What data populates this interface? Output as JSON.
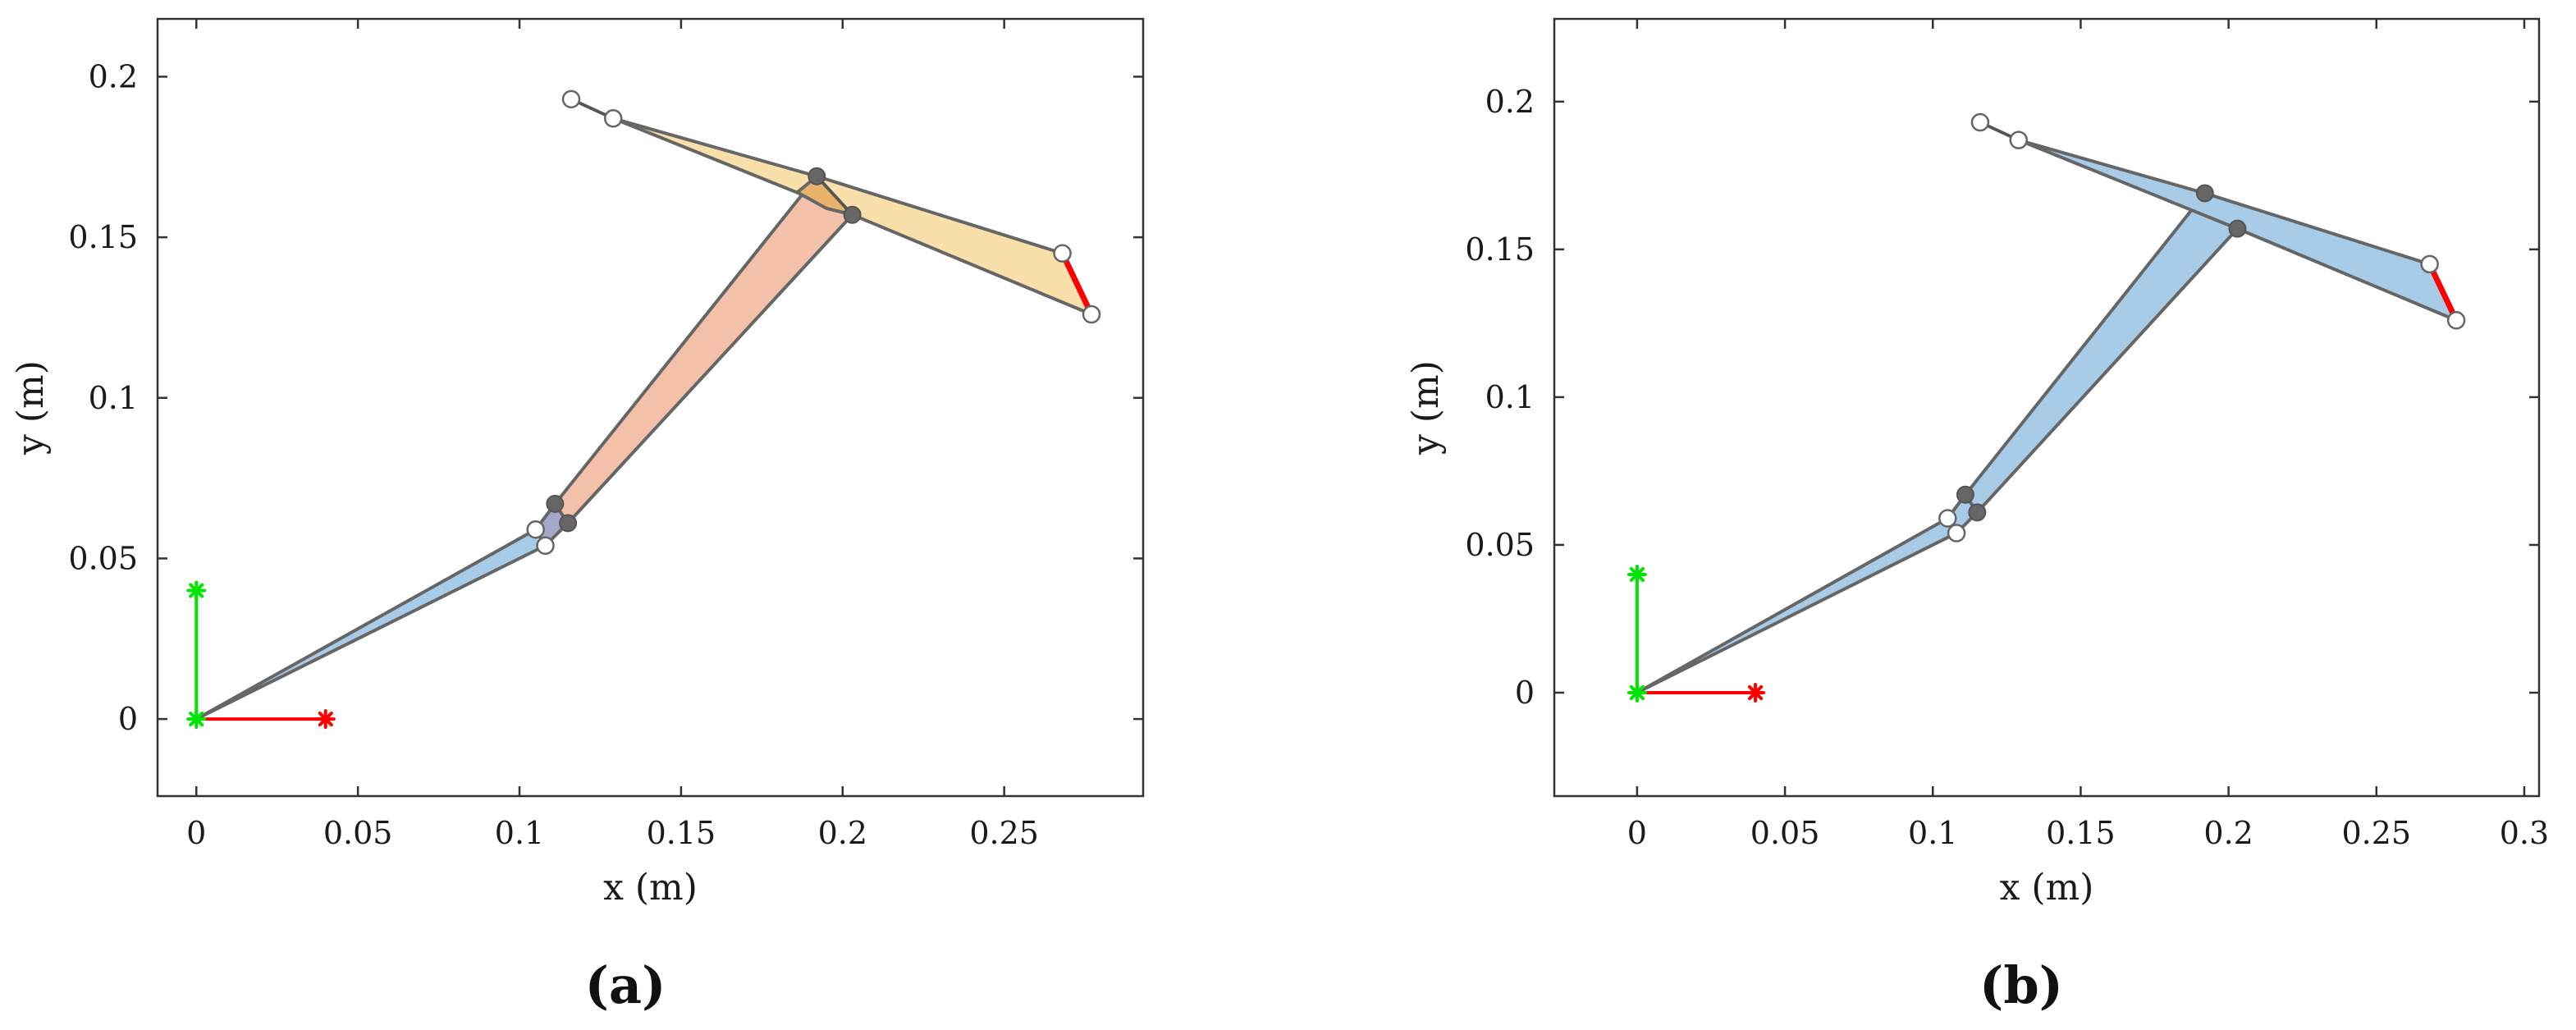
{
  "chart_data": [
    {
      "type": "mechanism-plot",
      "panel_label": "(a)",
      "xlabel": "x (m)",
      "ylabel": "y (m)",
      "xlim": [
        -0.012,
        0.293
      ],
      "ylim": [
        -0.024,
        0.218
      ],
      "xticks": [
        0,
        0.05,
        0.1,
        0.15,
        0.2,
        0.25
      ],
      "xtick_labels": [
        "0",
        "0.05",
        "0.1",
        "0.15",
        "0.2",
        "0.25"
      ],
      "yticks": [
        0,
        0.05,
        0.1,
        0.15,
        0.2
      ],
      "ytick_labels": [
        "0",
        "0.05",
        "0.1",
        "0.15",
        "0.2"
      ],
      "frame_axes": {
        "origin": [
          0,
          0
        ],
        "x_axis": {
          "end": [
            0.04,
            0
          ],
          "color": "#ff0000"
        },
        "y_axis": {
          "end": [
            0,
            0.04
          ],
          "color": "#00e600"
        }
      },
      "links": [
        {
          "fill": "#a8cce8",
          "points": [
            [
              0,
              0
            ],
            [
              0.105,
              0.059
            ],
            [
              0.108,
              0.054
            ]
          ]
        },
        {
          "fill": "#a5a6c8",
          "points": [
            [
              0.105,
              0.059
            ],
            [
              0.111,
              0.067
            ],
            [
              0.115,
              0.061
            ],
            [
              0.108,
              0.054
            ]
          ]
        },
        {
          "fill": "#f3c0aa",
          "points": [
            [
              0.111,
              0.067
            ],
            [
              0.192,
              0.169
            ],
            [
              0.203,
              0.157
            ],
            [
              0.115,
              0.061
            ]
          ]
        },
        {
          "fill": "#f9e0ab",
          "points": [
            [
              0.116,
              0.193
            ],
            [
              0.129,
              0.187
            ],
            [
              0.192,
              0.169
            ],
            [
              0.268,
              0.145
            ],
            [
              0.277,
              0.126
            ],
            [
              0.203,
              0.157
            ],
            [
              0.129,
              0.187
            ]
          ]
        },
        {
          "fill": "#e8b26b",
          "points": [
            [
              0.186,
              0.164
            ],
            [
              0.192,
              0.169
            ],
            [
              0.203,
              0.157
            ],
            [
              0.195,
              0.159
            ]
          ]
        }
      ],
      "lines": [
        {
          "points": [
            [
              0.192,
              0.169
            ],
            [
              0.203,
              0.157
            ]
          ],
          "color": "#555555"
        },
        {
          "points": [
            [
              0.116,
              0.193
            ],
            [
              0.129,
              0.187
            ]
          ],
          "color": "#555555"
        }
      ],
      "end_effector": {
        "points": [
          [
            0.268,
            0.145
          ],
          [
            0.277,
            0.126
          ]
        ],
        "color": "#ff0000"
      },
      "joints_filled": [
        [
          0.111,
          0.067
        ],
        [
          0.115,
          0.061
        ],
        [
          0.192,
          0.169
        ],
        [
          0.203,
          0.157
        ]
      ],
      "joints_open": [
        [
          0.105,
          0.059
        ],
        [
          0.108,
          0.054
        ],
        [
          0.116,
          0.193
        ],
        [
          0.129,
          0.187
        ],
        [
          0.268,
          0.145
        ],
        [
          0.277,
          0.126
        ]
      ]
    },
    {
      "type": "mechanism-plot",
      "panel_label": "(b)",
      "xlabel": "x (m)",
      "ylabel": "y (m)",
      "xlim": [
        -0.028,
        0.305
      ],
      "ylim": [
        -0.035,
        0.228
      ],
      "xticks": [
        0,
        0.05,
        0.1,
        0.15,
        0.2,
        0.25,
        0.3
      ],
      "xtick_labels": [
        "0",
        "0.05",
        "0.1",
        "0.15",
        "0.2",
        "0.25",
        "0.3"
      ],
      "yticks": [
        0,
        0.05,
        0.1,
        0.15,
        0.2
      ],
      "ytick_labels": [
        "0",
        "0.05",
        "0.1",
        "0.15",
        "0.2"
      ],
      "frame_axes": {
        "origin": [
          0,
          0
        ],
        "x_axis": {
          "end": [
            0.04,
            0
          ],
          "color": "#ff0000"
        },
        "y_axis": {
          "end": [
            0,
            0.04
          ],
          "color": "#00e600"
        }
      },
      "links": [
        {
          "fill": "#a8cce8",
          "points": [
            [
              0,
              0
            ],
            [
              0.105,
              0.059
            ],
            [
              0.108,
              0.054
            ]
          ]
        },
        {
          "fill": "#a8cce8",
          "points": [
            [
              0.105,
              0.059
            ],
            [
              0.111,
              0.067
            ],
            [
              0.115,
              0.061
            ],
            [
              0.108,
              0.054
            ]
          ]
        },
        {
          "fill": "#a8cce8",
          "points": [
            [
              0.111,
              0.067
            ],
            [
              0.192,
              0.169
            ],
            [
              0.203,
              0.157
            ],
            [
              0.115,
              0.061
            ]
          ]
        },
        {
          "fill": "#a8cce8",
          "points": [
            [
              0.116,
              0.193
            ],
            [
              0.129,
              0.187
            ],
            [
              0.192,
              0.169
            ],
            [
              0.268,
              0.145
            ],
            [
              0.277,
              0.126
            ],
            [
              0.203,
              0.157
            ],
            [
              0.129,
              0.187
            ]
          ]
        }
      ],
      "lines": [
        {
          "points": [
            [
              0.116,
              0.193
            ],
            [
              0.129,
              0.187
            ]
          ],
          "color": "#555555"
        }
      ],
      "end_effector": {
        "points": [
          [
            0.268,
            0.145
          ],
          [
            0.277,
            0.126
          ]
        ],
        "color": "#ff0000"
      },
      "joints_filled": [
        [
          0.111,
          0.067
        ],
        [
          0.115,
          0.061
        ],
        [
          0.192,
          0.169
        ],
        [
          0.203,
          0.157
        ]
      ],
      "joints_open": [
        [
          0.105,
          0.059
        ],
        [
          0.108,
          0.054
        ],
        [
          0.116,
          0.193
        ],
        [
          0.129,
          0.187
        ],
        [
          0.268,
          0.145
        ],
        [
          0.277,
          0.126
        ]
      ]
    }
  ]
}
